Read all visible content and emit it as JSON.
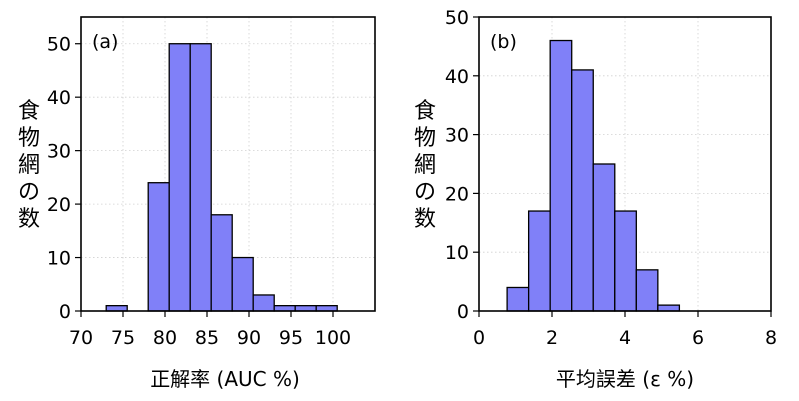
{
  "chart_data": [
    {
      "type": "bar",
      "panel_label": "(a)",
      "xlabel": "正解率 (AUC %)",
      "ylabel": "食物網の数",
      "xlim": [
        70,
        105
      ],
      "ylim": [
        0,
        55
      ],
      "xticks": [
        70,
        75,
        80,
        85,
        90,
        95,
        100
      ],
      "yticks": [
        0,
        10,
        20,
        30,
        40,
        50
      ],
      "grid": true,
      "bin_width": 2.5,
      "bins": [
        {
          "x0": 73.0,
          "value": 1
        },
        {
          "x0": 75.5,
          "value": 0
        },
        {
          "x0": 78.0,
          "value": 24
        },
        {
          "x0": 80.5,
          "value": 50
        },
        {
          "x0": 83.0,
          "value": 50
        },
        {
          "x0": 85.5,
          "value": 18
        },
        {
          "x0": 88.0,
          "value": 10
        },
        {
          "x0": 90.5,
          "value": 3
        },
        {
          "x0": 93.0,
          "value": 1
        },
        {
          "x0": 95.5,
          "value": 1
        },
        {
          "x0": 98.0,
          "value": 1
        }
      ]
    },
    {
      "type": "bar",
      "panel_label": "(b)",
      "xlabel": "平均誤差 (ε %)",
      "ylabel": "食物網の数",
      "xlim": [
        0,
        8
      ],
      "ylim": [
        0,
        50
      ],
      "xticks": [
        0,
        2,
        4,
        6,
        8
      ],
      "yticks": [
        0,
        10,
        20,
        30,
        40,
        50
      ],
      "grid": true,
      "bin_width": 0.59,
      "bins": [
        {
          "x0": 0.77,
          "value": 4
        },
        {
          "x0": 1.36,
          "value": 17
        },
        {
          "x0": 1.95,
          "value": 46
        },
        {
          "x0": 2.54,
          "value": 41
        },
        {
          "x0": 3.13,
          "value": 25
        },
        {
          "x0": 3.72,
          "value": 17
        },
        {
          "x0": 4.31,
          "value": 7
        },
        {
          "x0": 4.9,
          "value": 1
        }
      ]
    }
  ],
  "style": {
    "bar_fill": "#8080f8",
    "bar_edge": "#000000",
    "grid_color": "#d0d0d0"
  }
}
